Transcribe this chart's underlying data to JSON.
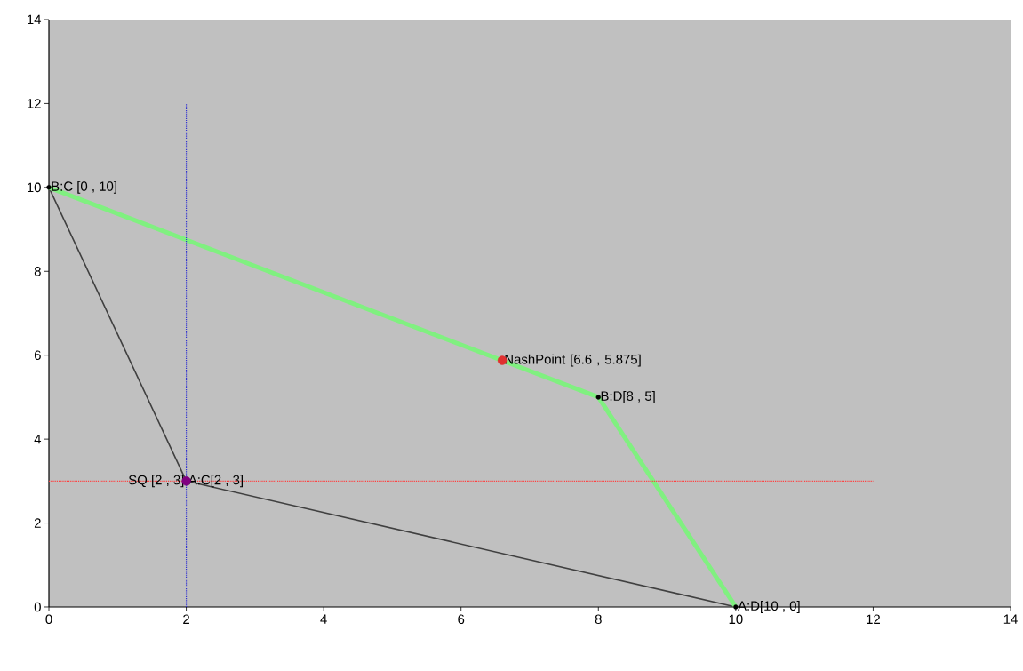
{
  "chart_data": {
    "type": "line",
    "series": [
      {
        "color": "#404040",
        "x": [
          0,
          2,
          10
        ],
        "values": [
          10,
          3,
          0
        ]
      },
      {
        "color": "#80f080",
        "x": [
          0,
          8,
          10
        ],
        "values": [
          10,
          5,
          0
        ]
      },
      {
        "color": "#3030d0",
        "line_style": "dotted",
        "x": [
          2,
          2
        ],
        "values": [
          0,
          12
        ]
      },
      {
        "color": "#ff4040",
        "line_style": "dotted",
        "x": [
          0,
          12
        ],
        "values": [
          3,
          3
        ]
      },
      {
        "type": "scatter",
        "color": "#000000",
        "x": [
          0,
          8,
          10
        ],
        "values": [
          10,
          5,
          0
        ]
      },
      {
        "type": "scatter",
        "color": "#800080",
        "x": [
          2
        ],
        "values": [
          3
        ]
      },
      {
        "type": "scatter",
        "color": "#e03030",
        "x": [
          6.6
        ],
        "values": [
          5.875
        ]
      }
    ],
    "xlim": [
      0,
      14
    ],
    "ylim": [
      0,
      14
    ],
    "xticks": [
      0,
      2,
      4,
      6,
      8,
      10,
      12,
      14
    ],
    "yticks": [
      0,
      2,
      4,
      6,
      8,
      10,
      12,
      14
    ],
    "annotations": [
      {
        "text": "B:C [0 , 10]",
        "x": 0,
        "y": 10
      },
      {
        "text": "NashPoint [6.6 , 5.875]",
        "x": 6.6,
        "y": 5.875
      },
      {
        "text": "B:D[8 , 5]",
        "x": 8,
        "y": 5
      },
      {
        "text": "SQ [2 , 3]",
        "x": 2,
        "y": 3
      },
      {
        "text": "A:C[2 , 3]",
        "x": 2,
        "y": 3
      },
      {
        "text": "A:D[10 , 0]",
        "x": 10,
        "y": 0
      }
    ]
  }
}
